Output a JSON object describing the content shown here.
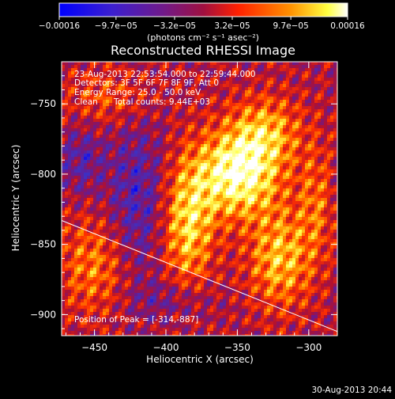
{
  "chart_data": {
    "type": "heatmap",
    "title": "Reconstructed RHESSI Image",
    "xlabel": "Heliocentric X (arcsec)",
    "ylabel": "Heliocentric Y (arcsec)",
    "xlim": [
      -473,
      -280
    ],
    "ylim": [
      -915,
      -720
    ],
    "x_ticks": [
      -450,
      -400,
      -350,
      -300
    ],
    "y_ticks": [
      -750,
      -800,
      -850,
      -900
    ],
    "colorbar": {
      "range": [
        -0.00016,
        0.00016
      ],
      "tick_values": [
        -0.00016,
        -9.7e-05,
        -3.2e-05,
        3.2e-05,
        9.7e-05,
        0.00016
      ],
      "tick_labels": [
        "−0.00016",
        "−9.7e−05",
        "−3.2e−05",
        "3.2e−05",
        "9.7e−05",
        "0.00016"
      ],
      "units": "(photons cm⁻² s⁻¹ asec⁻²)"
    },
    "annotations": {
      "time_range": "23-Aug-2013 22:53:54.000 to 22:59:44.000",
      "detectors": "Detectors: 3F 5F 6F 7F 8F 9F, Att 0",
      "energy": "Energy Range: 25.0 - 50.0 keV",
      "method": "Clean",
      "total_counts": "Total counts: 9.44E+03",
      "peak": "Position of Peak = [-314,-887]"
    },
    "limb_line": {
      "x": [
        -473,
        -280
      ],
      "y": [
        -833,
        -912
      ]
    },
    "grid": false,
    "colormap": [
      "#0000ff",
      "#4030c0",
      "#6a1a8c",
      "#b01030",
      "#ff3000",
      "#ff9a00",
      "#ffff50",
      "#ffffff"
    ],
    "footer_date": "30-Aug-2013 20:44"
  }
}
